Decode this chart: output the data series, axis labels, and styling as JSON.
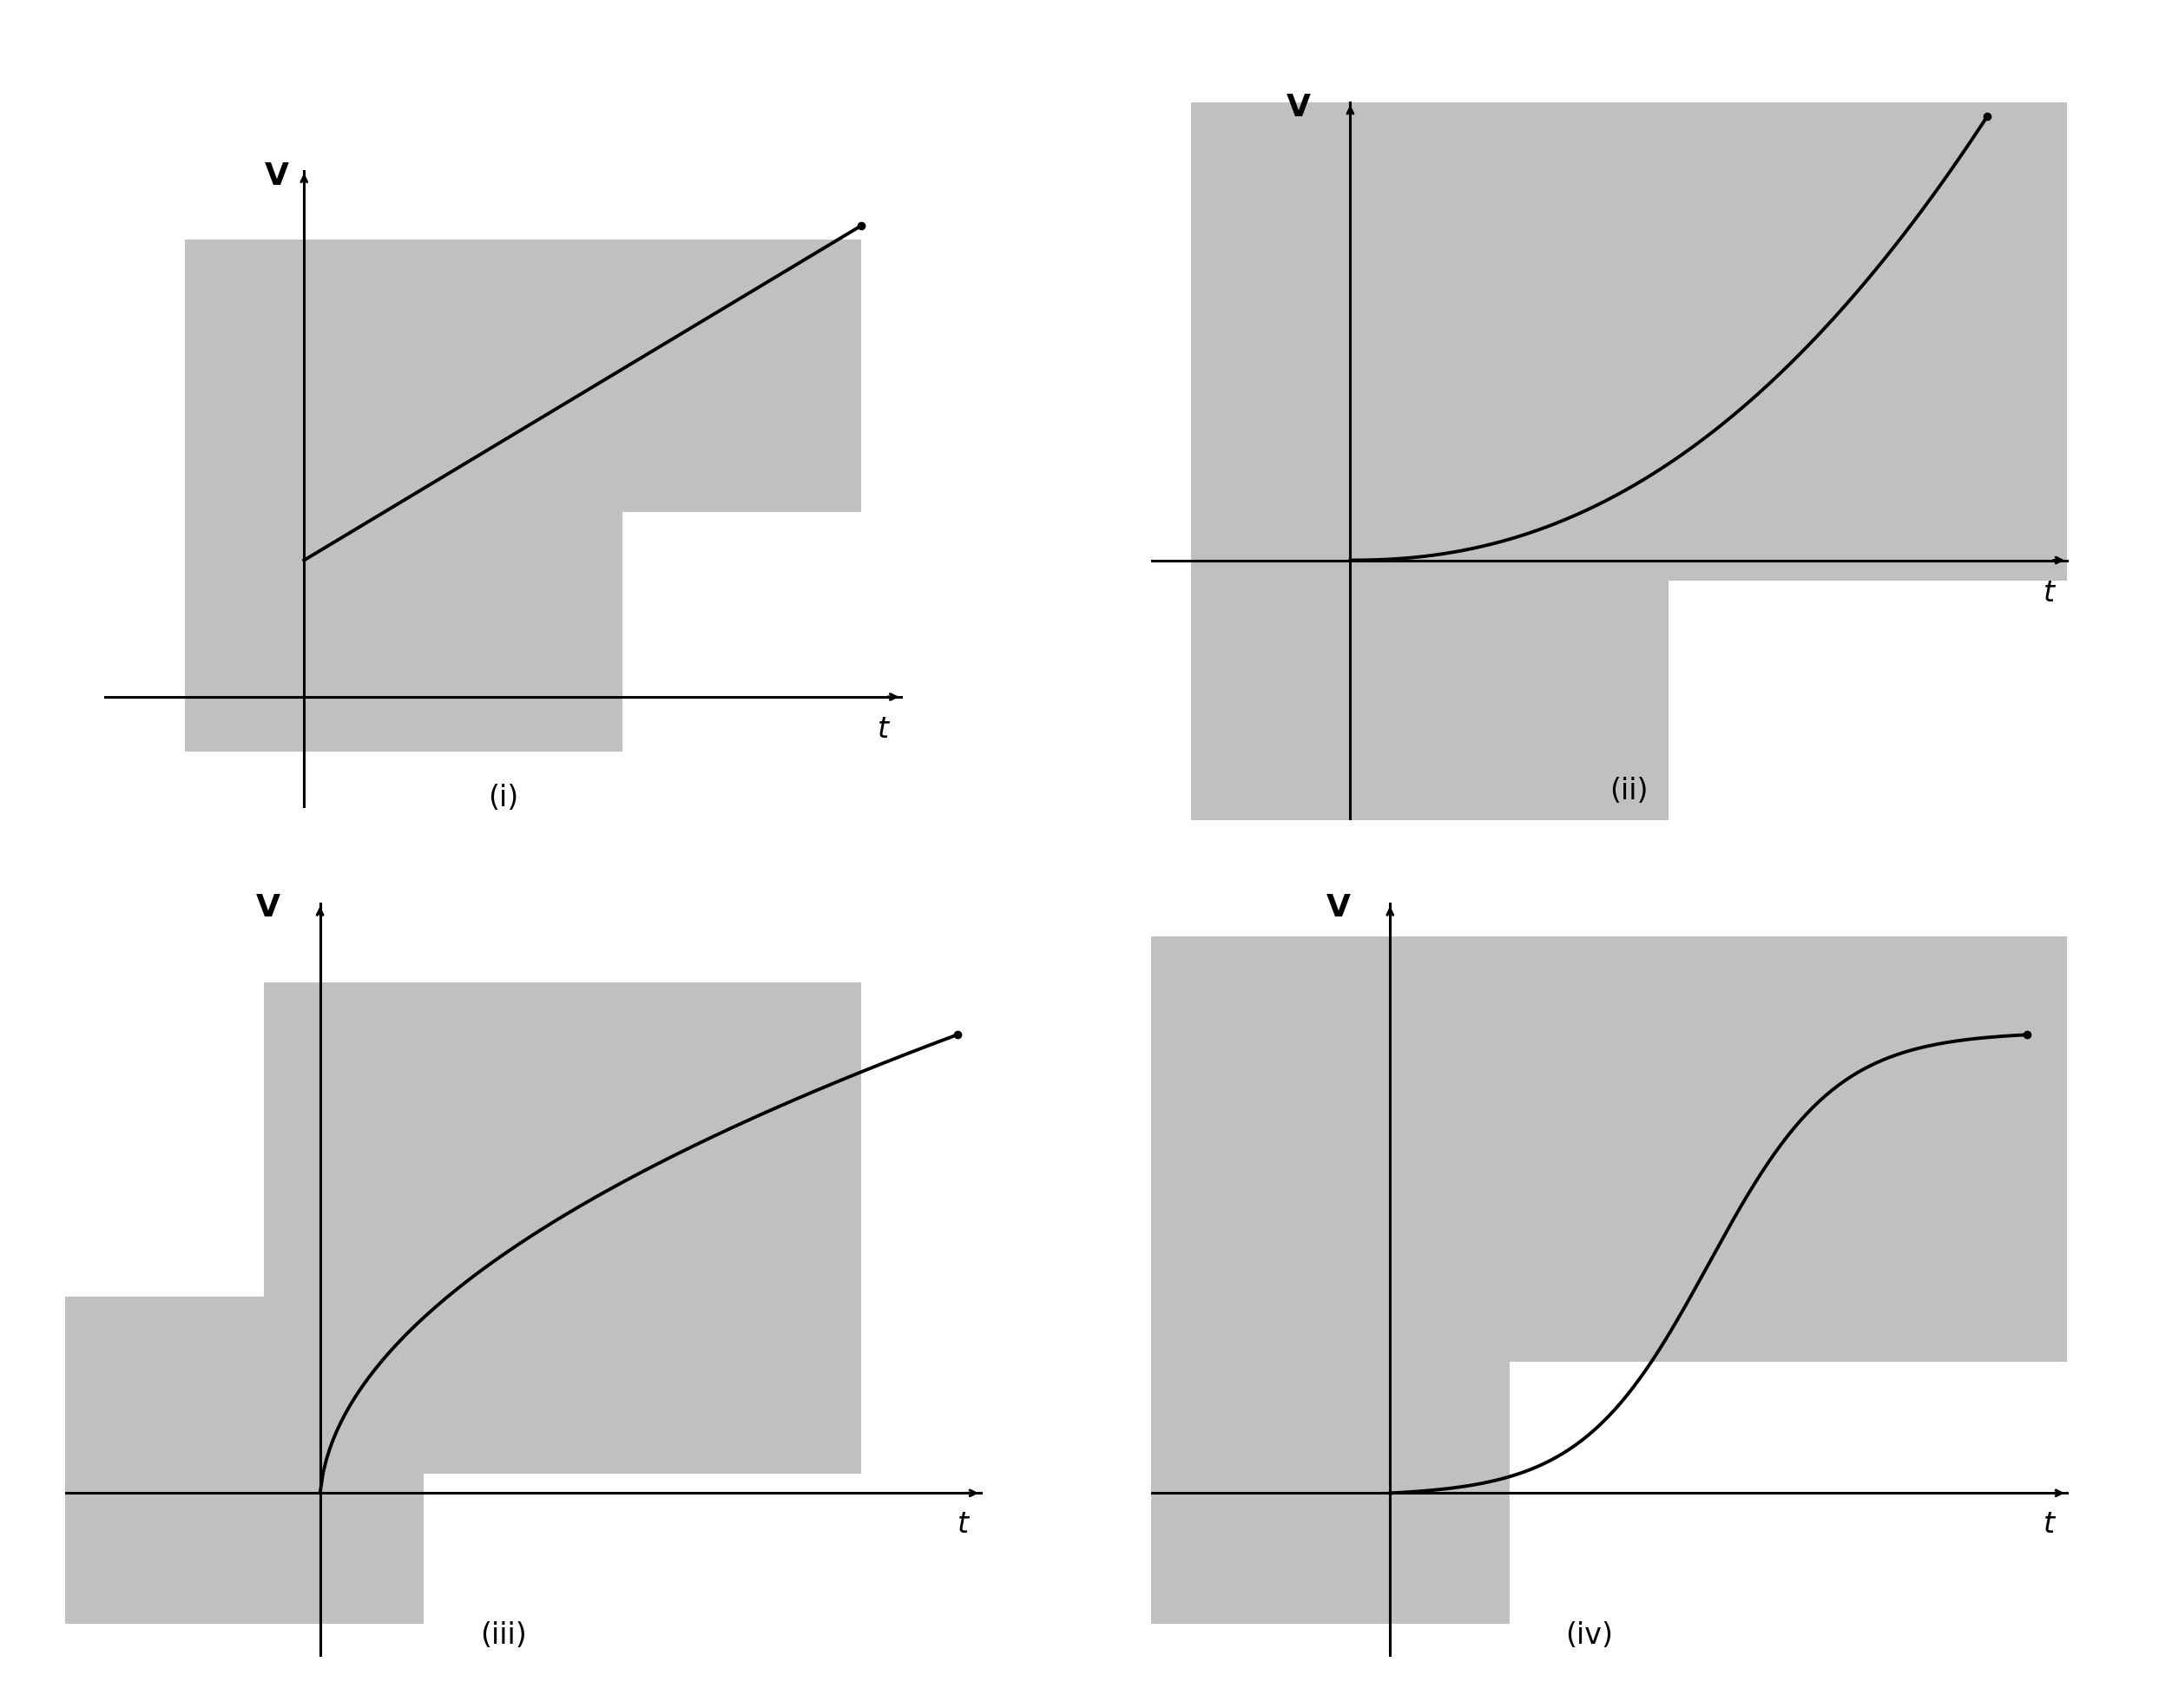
{
  "bg_color": "#c0c0c0",
  "white_bg": "#ffffff",
  "curve_color": "#000000",
  "fig_width": 25.02,
  "fig_height": 19.68,
  "subplot_labels": [
    "(i)",
    "(ii)",
    "(iii)",
    "(iv)"
  ],
  "axis_label_v": "V",
  "axis_label_t": "t",
  "curve_lw": 2.8,
  "axis_lw": 2.2
}
